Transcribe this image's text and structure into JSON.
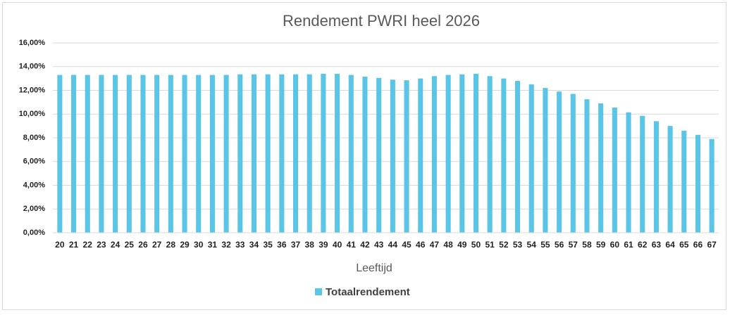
{
  "chart_data": {
    "type": "bar",
    "title": "Rendement PWRI heel 2026",
    "x_label": "Leeftijd",
    "categories": [
      "20",
      "21",
      "22",
      "23",
      "24",
      "25",
      "26",
      "27",
      "28",
      "29",
      "30",
      "31",
      "32",
      "33",
      "34",
      "35",
      "36",
      "37",
      "38",
      "39",
      "40",
      "41",
      "42",
      "43",
      "44",
      "45",
      "46",
      "47",
      "48",
      "49",
      "50",
      "51",
      "52",
      "53",
      "54",
      "55",
      "56",
      "57",
      "58",
      "59",
      "60",
      "61",
      "62",
      "63",
      "64",
      "65",
      "66",
      "67"
    ],
    "series": [
      {
        "name": "Totaalrendement",
        "color": "#5bc5e8",
        "values": [
          13.3,
          13.3,
          13.3,
          13.3,
          13.3,
          13.3,
          13.3,
          13.3,
          13.3,
          13.3,
          13.3,
          13.3,
          13.3,
          13.35,
          13.35,
          13.35,
          13.35,
          13.35,
          13.35,
          13.4,
          13.4,
          13.3,
          13.15,
          13.05,
          12.9,
          12.85,
          13.0,
          13.2,
          13.3,
          13.35,
          13.4,
          13.2,
          13.0,
          12.8,
          12.5,
          12.2,
          11.9,
          11.7,
          11.25,
          10.9,
          10.55,
          10.15,
          9.85,
          9.4,
          9.0,
          8.6,
          8.25,
          7.9
        ]
      }
    ],
    "ylim": [
      0,
      16
    ],
    "yticks": [
      {
        "value": 0,
        "label": "0,00%"
      },
      {
        "value": 2,
        "label": "2,00%"
      },
      {
        "value": 4,
        "label": "4,00%"
      },
      {
        "value": 6,
        "label": "6,00%"
      },
      {
        "value": 8,
        "label": "8,00%"
      },
      {
        "value": 10,
        "label": "10,00%"
      },
      {
        "value": 12,
        "label": "12,00%"
      },
      {
        "value": 14,
        "label": "14,00%"
      },
      {
        "value": 16,
        "label": "16,00%"
      }
    ],
    "grid": true,
    "legend": "bottom"
  }
}
